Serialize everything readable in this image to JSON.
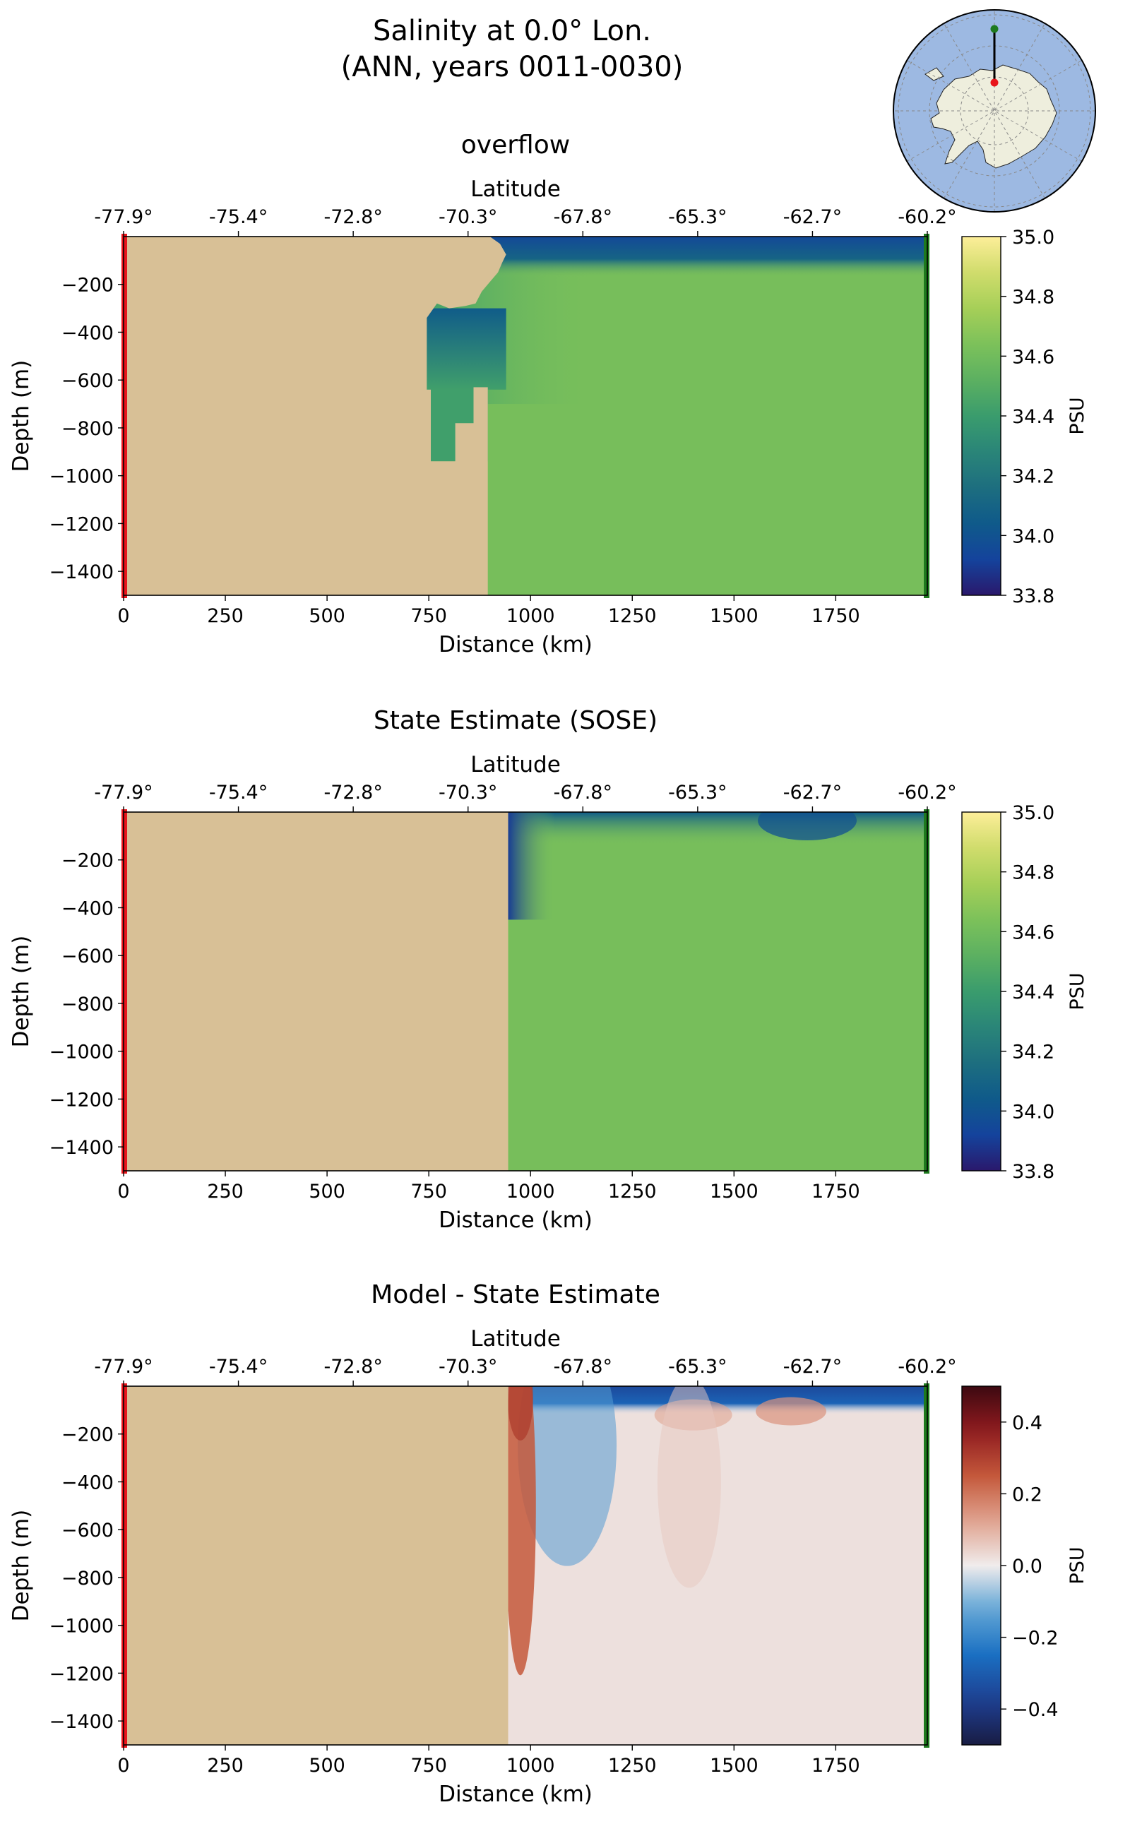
{
  "figure": {
    "title_line1": "Salinity at 0.0° Lon.",
    "title_line2": "(ANN, years 0011-0030)"
  },
  "colors": {
    "land": "#d8c096",
    "start_marker": "#e8151b",
    "end_marker": "#1e7a1e",
    "map_ocean": "#9db9e2",
    "map_land": "#eeeedd"
  },
  "inset_map": {
    "type": "south-polar-stereographic",
    "transect_line": "0.0° Lon.",
    "start_point_color": "#e8151b",
    "end_point_color": "#1e7a1e"
  },
  "chart_data": [
    {
      "type": "heatmap",
      "title": "overflow",
      "xlabel": "Distance (km)",
      "ylabel": "Depth (m)",
      "x2label": "Latitude",
      "colorbar_label": "PSU",
      "colormap": "haline",
      "xlim": [
        0,
        1975
      ],
      "ylim": [
        -1500,
        0
      ],
      "x_ticks": [
        0,
        250,
        500,
        750,
        1000,
        1250,
        1500,
        1750
      ],
      "y_ticks": [
        -200,
        -400,
        -600,
        -800,
        -1000,
        -1200,
        -1400
      ],
      "lat_ticks": [
        "-77.9°",
        "-75.4°",
        "-72.8°",
        "-70.3°",
        "-67.8°",
        "-65.3°",
        "-62.7°",
        "-60.2°"
      ],
      "clim": [
        33.8,
        35.0
      ],
      "colorbar_ticks": [
        33.8,
        34.0,
        34.2,
        34.4,
        34.6,
        34.8,
        35.0
      ],
      "colorbar_tick_labels": [
        "33.8",
        "34.0",
        "34.2",
        "34.4",
        "34.6",
        "34.8",
        "35.0"
      ],
      "field": {
        "land_profile": [
          [
            0,
            0
          ],
          [
            900,
            0
          ],
          [
            925,
            -30
          ],
          [
            940,
            -75
          ],
          [
            930,
            -110
          ],
          [
            920,
            -150
          ],
          [
            900,
            -190
          ],
          [
            880,
            -230
          ],
          [
            865,
            -280
          ],
          [
            840,
            -290
          ],
          [
            800,
            -300
          ],
          [
            770,
            -280
          ],
          [
            745,
            -340
          ],
          [
            745,
            -640
          ],
          [
            755,
            -640
          ],
          [
            755,
            -940
          ],
          [
            815,
            -940
          ],
          [
            815,
            -780
          ],
          [
            860,
            -780
          ],
          [
            860,
            -630
          ],
          [
            895,
            -630
          ],
          [
            895,
            -1500
          ],
          [
            0,
            -1500
          ]
        ],
        "surface_salinity": 33.95,
        "surface_layer_depth": 110,
        "deep_salinity": 34.62,
        "shelf_salinity": 34.42
      }
    },
    {
      "type": "heatmap",
      "title": "State Estimate (SOSE)",
      "xlabel": "Distance (km)",
      "ylabel": "Depth (m)",
      "x2label": "Latitude",
      "colorbar_label": "PSU",
      "colormap": "haline",
      "xlim": [
        0,
        1975
      ],
      "ylim": [
        -1500,
        0
      ],
      "x_ticks": [
        0,
        250,
        500,
        750,
        1000,
        1250,
        1500,
        1750
      ],
      "y_ticks": [
        -200,
        -400,
        -600,
        -800,
        -1000,
        -1200,
        -1400
      ],
      "lat_ticks": [
        "-77.9°",
        "-75.4°",
        "-72.8°",
        "-70.3°",
        "-67.8°",
        "-65.3°",
        "-62.7°",
        "-60.2°"
      ],
      "clim": [
        33.8,
        35.0
      ],
      "colorbar_ticks": [
        33.8,
        34.0,
        34.2,
        34.4,
        34.6,
        34.8,
        35.0
      ],
      "colorbar_tick_labels": [
        "33.8",
        "34.0",
        "34.2",
        "34.4",
        "34.6",
        "34.8",
        "35.0"
      ],
      "field": {
        "land_edge_km": 945,
        "surface_salinity": 34.05,
        "coastal_fresh_salinity": 33.9,
        "deep_salinity": 34.62
      }
    },
    {
      "type": "heatmap",
      "title": "Model - State Estimate",
      "xlabel": "Distance (km)",
      "ylabel": "Depth (m)",
      "x2label": "Latitude",
      "colorbar_label": "PSU",
      "colormap": "balance",
      "xlim": [
        0,
        1975
      ],
      "ylim": [
        -1500,
        0
      ],
      "x_ticks": [
        0,
        250,
        500,
        750,
        1000,
        1250,
        1500,
        1750
      ],
      "y_ticks": [
        -200,
        -400,
        -600,
        -800,
        -1000,
        -1200,
        -1400
      ],
      "lat_ticks": [
        "-77.9°",
        "-75.4°",
        "-72.8°",
        "-70.3°",
        "-67.8°",
        "-65.3°",
        "-62.7°",
        "-60.2°"
      ],
      "clim": [
        -0.5,
        0.5
      ],
      "colorbar_ticks": [
        -0.4,
        -0.2,
        0.0,
        0.2,
        0.4
      ],
      "colorbar_tick_labels": [
        "−0.4",
        "−0.2",
        "0.0",
        "0.2",
        "0.4"
      ],
      "field": {
        "land_edge_km": 945,
        "surface_anomaly": -0.35,
        "coastal_positive_anomaly": 0.25,
        "background_anomaly": 0.02
      }
    }
  ]
}
